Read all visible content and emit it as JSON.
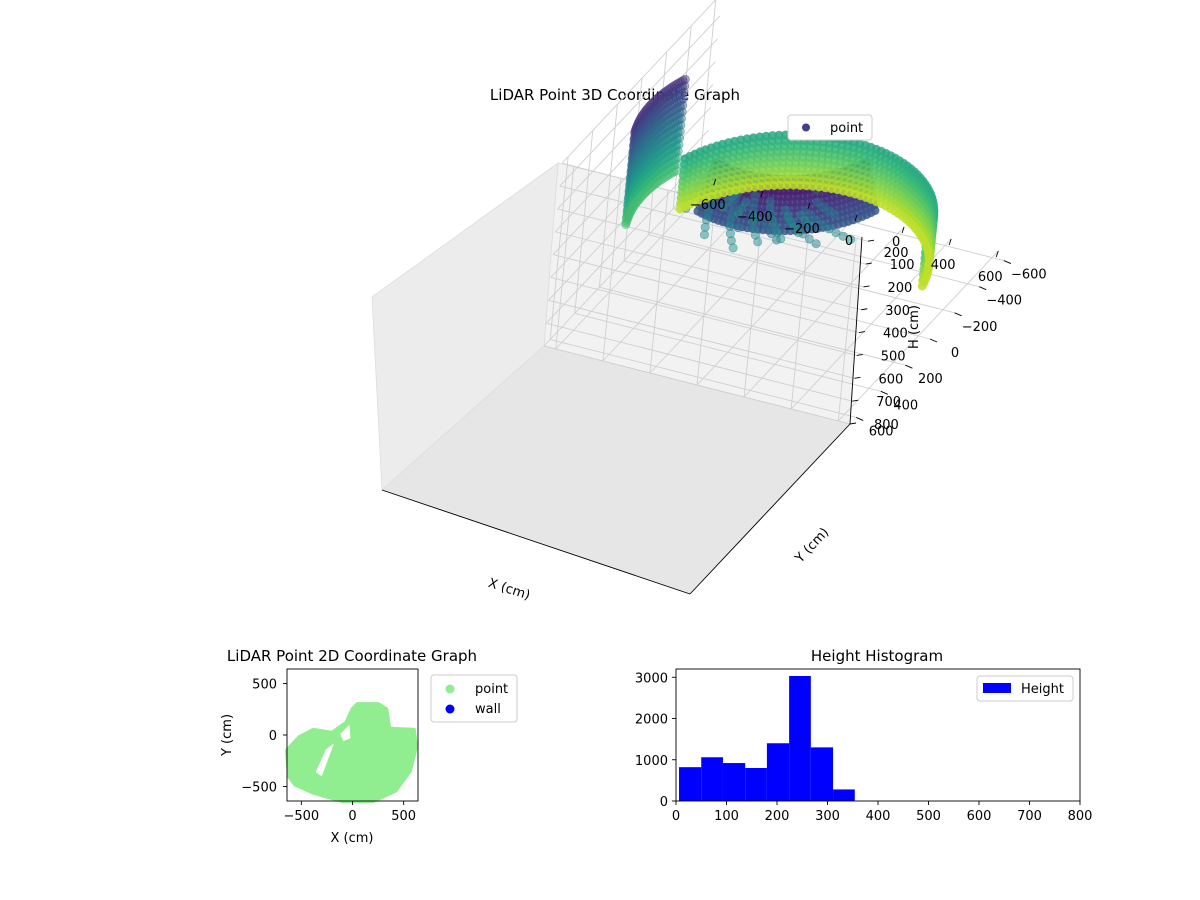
{
  "chart_data": [
    {
      "id": "lidar-3d",
      "type": "scatter",
      "title": "LiDAR Point 3D Coordinate Graph",
      "xlabel": "X (cm)",
      "ylabel": "Y (cm)",
      "zlabel": "H (cm)",
      "xlim": [
        -650,
        650
      ],
      "ylim": [
        -650,
        650
      ],
      "zlim": [
        800,
        0
      ],
      "xticks": [
        "−600",
        "−400",
        "−200",
        "0",
        "200",
        "400",
        "600"
      ],
      "yticks": [
        "−600",
        "−400",
        "−200",
        "0",
        "200",
        "400",
        "600"
      ],
      "zticks": [
        "0",
        "100",
        "200",
        "300",
        "400",
        "500",
        "600",
        "700",
        "800"
      ],
      "legend": {
        "label": "point",
        "position": "top-right",
        "color": "#3f3f8a"
      },
      "colormap": "viridis",
      "series": [
        {
          "name": "point",
          "rings": [
            {
              "description_level": "front wall arc",
              "h": [
                430,
                650
              ],
              "angle_deg": [
                200,
                350
              ],
              "radius": 560
            },
            {
              "description_level": "back wall section",
              "h": [
                20,
                200
              ],
              "angle_deg": [
                20,
                110
              ],
              "radius": 400
            },
            {
              "description_level": "left wall",
              "h": [
                100,
                500
              ],
              "angle_deg": [
                160,
                200
              ],
              "radius": 600
            }
          ]
        }
      ]
    },
    {
      "id": "lidar-2d",
      "type": "scatter",
      "title": "LiDAR Point 2D Coordinate Graph",
      "xlabel": "X (cm)",
      "ylabel": "Y (cm)",
      "xlim": [
        -640,
        640
      ],
      "ylim": [
        -640,
        640
      ],
      "xticks": [
        -500,
        0,
        500
      ],
      "yticks": [
        -500,
        0,
        500
      ],
      "legend": [
        {
          "label": "point",
          "color": "#90ee90"
        },
        {
          "label": "wall",
          "color": "#0000ff"
        }
      ],
      "region_outline": [
        [
          -620,
          -400
        ],
        [
          -640,
          -150
        ],
        [
          -520,
          -20
        ],
        [
          -380,
          50
        ],
        [
          -200,
          20
        ],
        [
          -60,
          120
        ],
        [
          0,
          250
        ],
        [
          50,
          300
        ],
        [
          250,
          300
        ],
        [
          330,
          250
        ],
        [
          360,
          60
        ],
        [
          600,
          50
        ],
        [
          620,
          -120
        ],
        [
          560,
          -350
        ],
        [
          420,
          -540
        ],
        [
          200,
          -640
        ],
        [
          -100,
          -640
        ],
        [
          -380,
          -560
        ],
        [
          -560,
          -480
        ]
      ]
    },
    {
      "id": "height-hist",
      "type": "bar",
      "title": "Height Histogram",
      "xlabel": "",
      "ylabel": "",
      "xlim": [
        0,
        800
      ],
      "ylim": [
        0,
        3200
      ],
      "xticks": [
        0,
        100,
        200,
        300,
        400,
        500,
        600,
        700,
        800
      ],
      "yticks": [
        0,
        1000,
        2000,
        3000
      ],
      "legend": {
        "label": "Height",
        "position": "top-right",
        "color": "#0000ff"
      },
      "bins": [
        {
          "x0": 6,
          "x1": 50,
          "value": 820
        },
        {
          "x0": 50,
          "x1": 93,
          "value": 1060
        },
        {
          "x0": 93,
          "x1": 137,
          "value": 920
        },
        {
          "x0": 137,
          "x1": 180,
          "value": 800
        },
        {
          "x0": 180,
          "x1": 224,
          "value": 1400
        },
        {
          "x0": 224,
          "x1": 267,
          "value": 3030
        },
        {
          "x0": 267,
          "x1": 311,
          "value": 1300
        },
        {
          "x0": 311,
          "x1": 354,
          "value": 280
        }
      ]
    }
  ]
}
